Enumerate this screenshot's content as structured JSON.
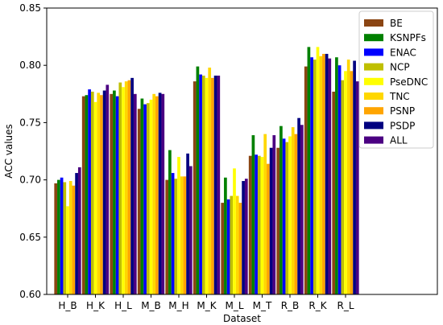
{
  "chart_data": {
    "type": "bar",
    "title": "",
    "xlabel": "Dataset",
    "ylabel": "ACC values",
    "ylim": [
      0.6,
      0.85
    ],
    "yticks": [
      "0.60",
      "0.65",
      "0.70",
      "0.75",
      "0.80",
      "0.85"
    ],
    "grid": false,
    "legend_position": "top-right",
    "categories": [
      "H_B",
      "H_K",
      "H_L",
      "M_B",
      "M_H",
      "M_K",
      "M_L",
      "M_T",
      "R_B",
      "R_K",
      "R_L"
    ],
    "series": [
      {
        "name": "BE",
        "color": "#8B4513",
        "values": [
          0.697,
          0.773,
          0.775,
          0.762,
          0.7,
          0.786,
          0.68,
          0.721,
          0.728,
          0.799,
          0.777
        ]
      },
      {
        "name": "KSNPFs",
        "color": "#008000",
        "values": [
          0.7,
          0.774,
          0.778,
          0.771,
          0.726,
          0.799,
          0.702,
          0.739,
          0.747,
          0.816,
          0.807
        ]
      },
      {
        "name": "ENAC",
        "color": "#0000FF",
        "values": [
          0.702,
          0.779,
          0.773,
          0.766,
          0.706,
          0.792,
          0.683,
          0.722,
          0.736,
          0.807,
          0.8
        ]
      },
      {
        "name": "NCP",
        "color": "#BFBF00",
        "values": [
          0.698,
          0.777,
          0.785,
          0.767,
          0.701,
          0.791,
          0.686,
          0.721,
          0.733,
          0.805,
          0.787
        ]
      },
      {
        "name": "PseDNC",
        "color": "#FFFF00",
        "values": [
          0.677,
          0.768,
          0.781,
          0.77,
          0.72,
          0.789,
          0.71,
          0.72,
          0.738,
          0.816,
          0.795
        ]
      },
      {
        "name": "TNC",
        "color": "#FFD700",
        "values": [
          0.699,
          0.776,
          0.786,
          0.775,
          0.703,
          0.798,
          0.686,
          0.74,
          0.746,
          0.808,
          0.805
        ]
      },
      {
        "name": "PSNP",
        "color": "#FFA500",
        "values": [
          0.695,
          0.774,
          0.787,
          0.773,
          0.703,
          0.789,
          0.68,
          0.714,
          0.74,
          0.81,
          0.795
        ]
      },
      {
        "name": "PSDP",
        "color": "#000080",
        "values": [
          0.706,
          0.778,
          0.789,
          0.776,
          0.723,
          0.791,
          0.699,
          0.728,
          0.754,
          0.81,
          0.804
        ]
      },
      {
        "name": "ALL",
        "color": "#4B0082",
        "values": [
          0.711,
          0.783,
          0.775,
          0.775,
          0.712,
          0.791,
          0.701,
          0.739,
          0.748,
          0.806,
          0.786
        ]
      }
    ]
  }
}
